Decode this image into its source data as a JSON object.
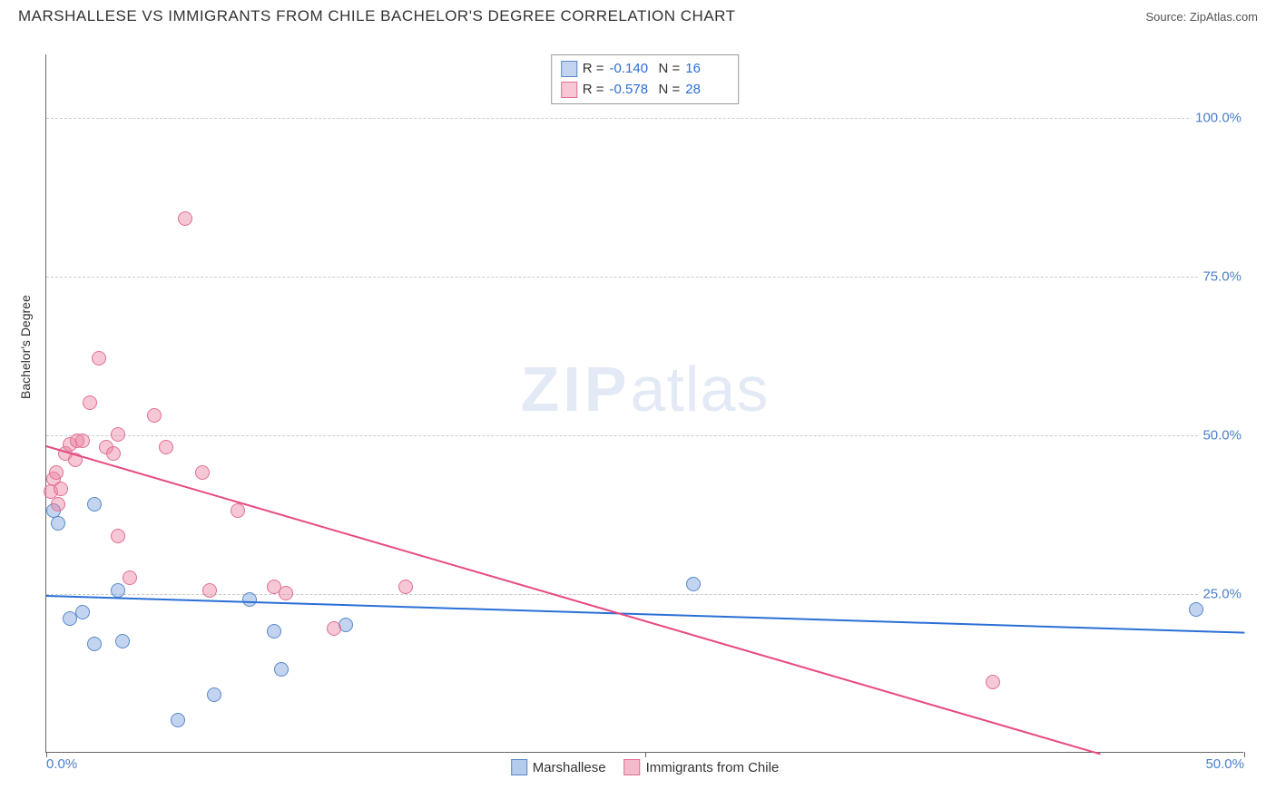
{
  "header": {
    "title": "MARSHALLESE VS IMMIGRANTS FROM CHILE BACHELOR'S DEGREE CORRELATION CHART",
    "source": "Source: ZipAtlas.com"
  },
  "watermark": {
    "zip": "ZIP",
    "atlas": "atlas"
  },
  "chart": {
    "type": "scatter",
    "ylabel": "Bachelor's Degree",
    "xlim": [
      0,
      50
    ],
    "ylim": [
      0,
      110
    ],
    "xticks": [
      {
        "v": 0,
        "label": "0.0%"
      },
      {
        "v": 25,
        "label": ""
      },
      {
        "v": 50,
        "label": "50.0%"
      }
    ],
    "yticks": [
      {
        "v": 25,
        "label": "25.0%"
      },
      {
        "v": 50,
        "label": "50.0%"
      },
      {
        "v": 75,
        "label": "75.0%"
      },
      {
        "v": 100,
        "label": "100.0%"
      }
    ],
    "grid_color": "#cccccc",
    "axis_color": "#666666",
    "background_color": "#ffffff",
    "tick_label_color": "#4a7fc9",
    "series": [
      {
        "name": "Marshallese",
        "fill": "rgba(120,160,220,0.45)",
        "stroke": "#5a88c9",
        "marker_radius": 8,
        "trend": {
          "x1": 0,
          "y1": 24.8,
          "x2": 50,
          "y2": 19.0,
          "color": "#2a6fd6",
          "width": 2
        },
        "R": "-0.140",
        "N": "16",
        "points": [
          {
            "x": 0.3,
            "y": 38
          },
          {
            "x": 0.5,
            "y": 36
          },
          {
            "x": 2.0,
            "y": 39
          },
          {
            "x": 1.0,
            "y": 21
          },
          {
            "x": 1.5,
            "y": 22
          },
          {
            "x": 3.0,
            "y": 25.5
          },
          {
            "x": 2.0,
            "y": 17
          },
          {
            "x": 3.2,
            "y": 17.5
          },
          {
            "x": 5.5,
            "y": 5
          },
          {
            "x": 7.0,
            "y": 9
          },
          {
            "x": 8.5,
            "y": 24
          },
          {
            "x": 9.5,
            "y": 19
          },
          {
            "x": 9.8,
            "y": 13
          },
          {
            "x": 12.5,
            "y": 20
          },
          {
            "x": 27.0,
            "y": 26.5
          },
          {
            "x": 48.0,
            "y": 22.5
          }
        ]
      },
      {
        "name": "Immigrants from Chile",
        "fill": "rgba(235,130,160,0.45)",
        "stroke": "#e06f95",
        "marker_radius": 8,
        "trend": {
          "x1": 0,
          "y1": 48.5,
          "x2": 44,
          "y2": 0,
          "color": "#e74a83",
          "width": 2
        },
        "R": "-0.578",
        "N": "28",
        "points": [
          {
            "x": 0.2,
            "y": 41
          },
          {
            "x": 0.3,
            "y": 43
          },
          {
            "x": 0.4,
            "y": 44
          },
          {
            "x": 0.5,
            "y": 39
          },
          {
            "x": 0.6,
            "y": 41.5
          },
          {
            "x": 0.8,
            "y": 47
          },
          {
            "x": 1.0,
            "y": 48.5
          },
          {
            "x": 1.2,
            "y": 46
          },
          {
            "x": 1.3,
            "y": 49
          },
          {
            "x": 1.5,
            "y": 49
          },
          {
            "x": 1.8,
            "y": 55
          },
          {
            "x": 2.2,
            "y": 62
          },
          {
            "x": 2.5,
            "y": 48
          },
          {
            "x": 2.8,
            "y": 47
          },
          {
            "x": 3.0,
            "y": 50
          },
          {
            "x": 3.0,
            "y": 34
          },
          {
            "x": 3.5,
            "y": 27.5
          },
          {
            "x": 4.5,
            "y": 53
          },
          {
            "x": 5.0,
            "y": 48
          },
          {
            "x": 5.8,
            "y": 84
          },
          {
            "x": 6.5,
            "y": 44
          },
          {
            "x": 6.8,
            "y": 25.5
          },
          {
            "x": 8.0,
            "y": 38
          },
          {
            "x": 9.5,
            "y": 26
          },
          {
            "x": 10.0,
            "y": 25
          },
          {
            "x": 12.0,
            "y": 19.5
          },
          {
            "x": 15.0,
            "y": 26
          },
          {
            "x": 39.5,
            "y": 11
          }
        ]
      }
    ],
    "legend_bottom": [
      {
        "label": "Marshallese",
        "fill": "rgba(120,160,220,0.55)",
        "stroke": "#5a88c9"
      },
      {
        "label": "Immigrants from Chile",
        "fill": "rgba(235,130,160,0.55)",
        "stroke": "#e06f95"
      }
    ],
    "legend_top_labels": {
      "R": "R =",
      "N": "N ="
    }
  }
}
